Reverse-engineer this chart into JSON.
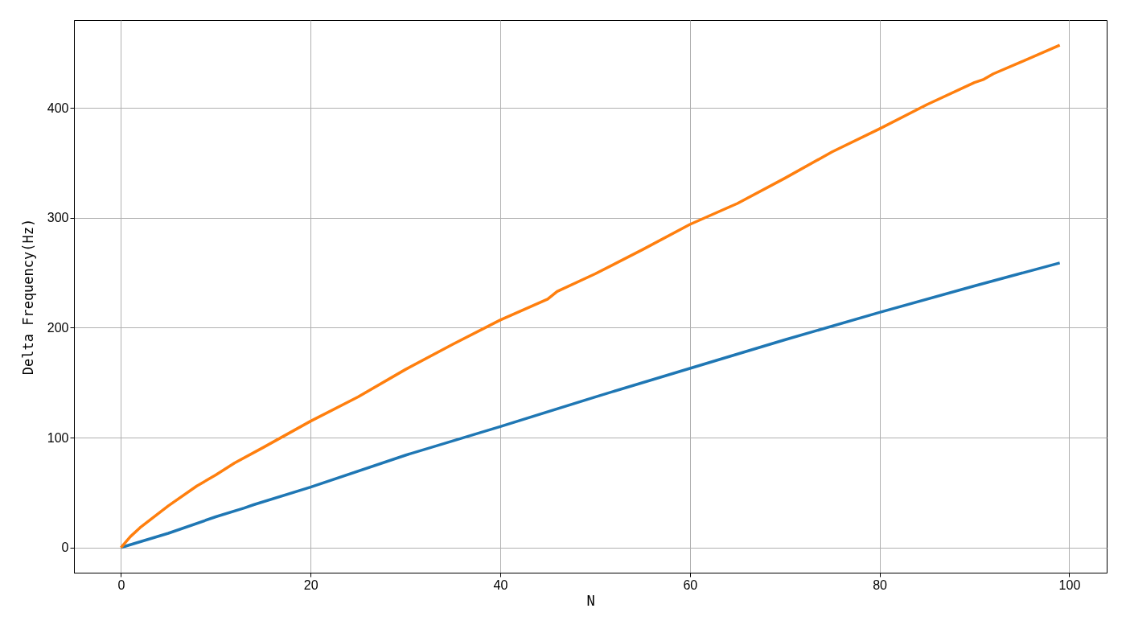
{
  "chart_data": {
    "type": "line",
    "xlabel": "N",
    "ylabel": "Delta Frequency(Hz)",
    "xlim": [
      -4.95,
      103.95
    ],
    "ylim": [
      -22.85,
      479.85
    ],
    "xticks": [
      0,
      20,
      40,
      60,
      80,
      100
    ],
    "yticks": [
      0,
      100,
      200,
      300,
      400
    ],
    "grid": true,
    "legend": false,
    "marker": "none",
    "line_style": "solid",
    "series": [
      {
        "color": "#1f77b4",
        "x": [
          0,
          5,
          10,
          13,
          14,
          20,
          30,
          40,
          50,
          60,
          70,
          80,
          90,
          99
        ],
        "values": [
          0,
          13,
          28,
          36,
          39,
          55,
          84,
          110,
          137,
          163,
          189,
          214,
          238,
          259
        ]
      },
      {
        "color": "#ff7f0e",
        "x": [
          0,
          1,
          2,
          5,
          8,
          10,
          12,
          15,
          20,
          25,
          30,
          35,
          40,
          45,
          46,
          50,
          55,
          60,
          65,
          70,
          75,
          80,
          85,
          90,
          91,
          92,
          95,
          99
        ],
        "values": [
          0,
          10,
          18,
          38,
          56,
          66,
          77,
          91,
          115,
          137,
          162,
          185,
          207,
          226,
          233,
          249,
          271,
          294,
          313,
          336,
          360,
          381,
          403,
          423,
          426,
          431,
          442,
          457
        ]
      }
    ]
  }
}
